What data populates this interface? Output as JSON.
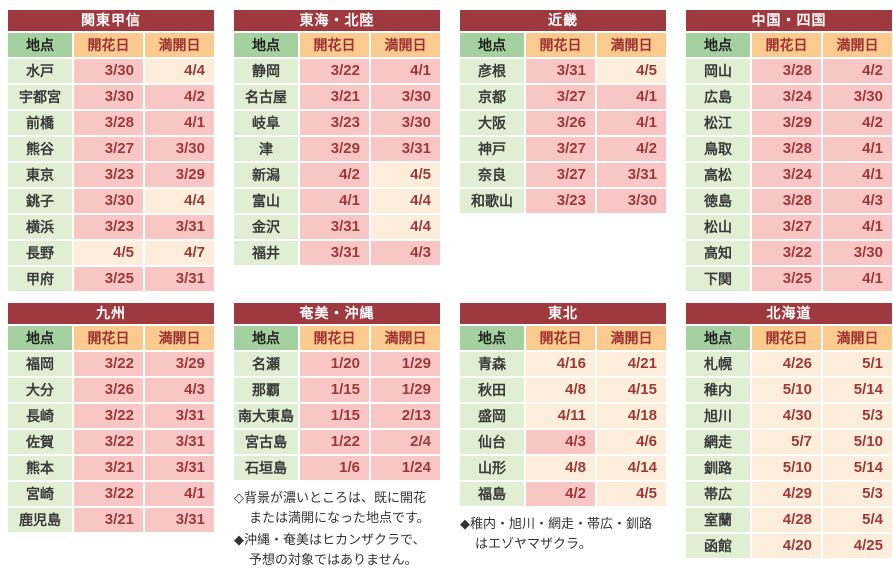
{
  "palette": {
    "title_bg": "#9e3a3f",
    "title_text": "#ffffff",
    "header_green": "#a5d1a0",
    "header_orange": "#fbca8e",
    "cell_green": "#e0efd3",
    "cell_pink": "#f9c6c6",
    "cell_cream": "#fdeedc",
    "date_text": "#9e3838",
    "header_date_text": "#9e3333",
    "location_text": "#3a3a3a",
    "note_text": "#333333"
  },
  "legend": {
    "done_means": "背景が濃いところは、既に開花または満開になった地点",
    "done_color": "#f9c6c6",
    "forecast_color": "#fdeedc"
  },
  "chart_data": [
    {
      "type": "table",
      "title": "関東甲信",
      "columns": [
        "地点",
        "開花日",
        "満開日"
      ],
      "rows": [
        {
          "location": "水戸",
          "kaika": "3/30",
          "kaika_done": true,
          "mankai": "4/4",
          "mankai_done": false
        },
        {
          "location": "宇都宮",
          "kaika": "3/30",
          "kaika_done": true,
          "mankai": "4/2",
          "mankai_done": true
        },
        {
          "location": "前橋",
          "kaika": "3/28",
          "kaika_done": true,
          "mankai": "4/1",
          "mankai_done": true
        },
        {
          "location": "熊谷",
          "kaika": "3/27",
          "kaika_done": true,
          "mankai": "3/30",
          "mankai_done": true
        },
        {
          "location": "東京",
          "kaika": "3/23",
          "kaika_done": true,
          "mankai": "3/29",
          "mankai_done": true
        },
        {
          "location": "銚子",
          "kaika": "3/30",
          "kaika_done": true,
          "mankai": "4/4",
          "mankai_done": false
        },
        {
          "location": "横浜",
          "kaika": "3/23",
          "kaika_done": true,
          "mankai": "3/31",
          "mankai_done": true
        },
        {
          "location": "長野",
          "kaika": "4/5",
          "kaika_done": false,
          "mankai": "4/7",
          "mankai_done": false
        },
        {
          "location": "甲府",
          "kaika": "3/25",
          "kaika_done": true,
          "mankai": "3/31",
          "mankai_done": true
        }
      ],
      "footnotes": []
    },
    {
      "type": "table",
      "title": "東海・北陸",
      "columns": [
        "地点",
        "開花日",
        "満開日"
      ],
      "rows": [
        {
          "location": "静岡",
          "kaika": "3/22",
          "kaika_done": true,
          "mankai": "4/1",
          "mankai_done": true
        },
        {
          "location": "名古屋",
          "kaika": "3/21",
          "kaika_done": true,
          "mankai": "3/30",
          "mankai_done": true
        },
        {
          "location": "岐阜",
          "kaika": "3/23",
          "kaika_done": true,
          "mankai": "3/30",
          "mankai_done": true
        },
        {
          "location": "津",
          "kaika": "3/29",
          "kaika_done": true,
          "mankai": "3/31",
          "mankai_done": true
        },
        {
          "location": "新潟",
          "kaika": "4/2",
          "kaika_done": true,
          "mankai": "4/5",
          "mankai_done": false
        },
        {
          "location": "富山",
          "kaika": "4/1",
          "kaika_done": true,
          "mankai": "4/4",
          "mankai_done": false
        },
        {
          "location": "金沢",
          "kaika": "3/31",
          "kaika_done": true,
          "mankai": "4/4",
          "mankai_done": false
        },
        {
          "location": "福井",
          "kaika": "3/31",
          "kaika_done": true,
          "mankai": "4/3",
          "mankai_done": true
        }
      ],
      "footnotes": []
    },
    {
      "type": "table",
      "title": "近畿",
      "columns": [
        "地点",
        "開花日",
        "満開日"
      ],
      "rows": [
        {
          "location": "彦根",
          "kaika": "3/31",
          "kaika_done": true,
          "mankai": "4/5",
          "mankai_done": false
        },
        {
          "location": "京都",
          "kaika": "3/27",
          "kaika_done": true,
          "mankai": "4/1",
          "mankai_done": true
        },
        {
          "location": "大阪",
          "kaika": "3/26",
          "kaika_done": true,
          "mankai": "4/1",
          "mankai_done": true
        },
        {
          "location": "神戸",
          "kaika": "3/27",
          "kaika_done": true,
          "mankai": "4/2",
          "mankai_done": true
        },
        {
          "location": "奈良",
          "kaika": "3/27",
          "kaika_done": true,
          "mankai": "3/31",
          "mankai_done": true
        },
        {
          "location": "和歌山",
          "kaika": "3/23",
          "kaika_done": true,
          "mankai": "3/30",
          "mankai_done": true
        }
      ],
      "footnotes": []
    },
    {
      "type": "table",
      "title": "中国・四国",
      "columns": [
        "地点",
        "開花日",
        "満開日"
      ],
      "rows": [
        {
          "location": "岡山",
          "kaika": "3/28",
          "kaika_done": true,
          "mankai": "4/2",
          "mankai_done": true
        },
        {
          "location": "広島",
          "kaika": "3/24",
          "kaika_done": true,
          "mankai": "3/30",
          "mankai_done": true
        },
        {
          "location": "松江",
          "kaika": "3/29",
          "kaika_done": true,
          "mankai": "4/2",
          "mankai_done": true
        },
        {
          "location": "鳥取",
          "kaika": "3/28",
          "kaika_done": true,
          "mankai": "4/1",
          "mankai_done": true
        },
        {
          "location": "高松",
          "kaika": "3/24",
          "kaika_done": true,
          "mankai": "4/1",
          "mankai_done": true
        },
        {
          "location": "徳島",
          "kaika": "3/28",
          "kaika_done": true,
          "mankai": "4/3",
          "mankai_done": true
        },
        {
          "location": "松山",
          "kaika": "3/27",
          "kaika_done": true,
          "mankai": "4/1",
          "mankai_done": true
        },
        {
          "location": "高知",
          "kaika": "3/22",
          "kaika_done": true,
          "mankai": "3/30",
          "mankai_done": true
        },
        {
          "location": "下関",
          "kaika": "3/25",
          "kaika_done": true,
          "mankai": "4/1",
          "mankai_done": true
        }
      ],
      "footnotes": []
    },
    {
      "type": "table",
      "title": "九州",
      "columns": [
        "地点",
        "開花日",
        "満開日"
      ],
      "rows": [
        {
          "location": "福岡",
          "kaika": "3/22",
          "kaika_done": true,
          "mankai": "3/29",
          "mankai_done": true
        },
        {
          "location": "大分",
          "kaika": "3/26",
          "kaika_done": true,
          "mankai": "4/3",
          "mankai_done": true
        },
        {
          "location": "長崎",
          "kaika": "3/22",
          "kaika_done": true,
          "mankai": "3/31",
          "mankai_done": true
        },
        {
          "location": "佐賀",
          "kaika": "3/22",
          "kaika_done": true,
          "mankai": "3/31",
          "mankai_done": true
        },
        {
          "location": "熊本",
          "kaika": "3/21",
          "kaika_done": true,
          "mankai": "3/31",
          "mankai_done": true
        },
        {
          "location": "宮崎",
          "kaika": "3/22",
          "kaika_done": true,
          "mankai": "4/1",
          "mankai_done": true
        },
        {
          "location": "鹿児島",
          "kaika": "3/21",
          "kaika_done": true,
          "mankai": "3/31",
          "mankai_done": true
        }
      ],
      "footnotes": []
    },
    {
      "type": "table",
      "title": "奄美・沖縄",
      "columns": [
        "地点",
        "開花日",
        "満開日"
      ],
      "rows": [
        {
          "location": "名瀬",
          "kaika": "1/20",
          "kaika_done": true,
          "mankai": "1/29",
          "mankai_done": true
        },
        {
          "location": "那覇",
          "kaika": "1/15",
          "kaika_done": true,
          "mankai": "1/29",
          "mankai_done": true
        },
        {
          "location": "南大東島",
          "kaika": "1/15",
          "kaika_done": true,
          "mankai": "2/13",
          "mankai_done": true
        },
        {
          "location": "宮古島",
          "kaika": "1/22",
          "kaika_done": true,
          "mankai": "2/4",
          "mankai_done": true
        },
        {
          "location": "石垣島",
          "kaika": "1/6",
          "kaika_done": true,
          "mankai": "1/24",
          "mankai_done": true
        }
      ],
      "footnotes": [
        [
          "◇背景が濃いところは、既に開花",
          "または満開になった地点です。"
        ],
        [
          "◆沖縄・奄美はヒカンザクラで、",
          "予想の対象ではありません。"
        ]
      ]
    },
    {
      "type": "table",
      "title": "東北",
      "columns": [
        "地点",
        "開花日",
        "満開日"
      ],
      "rows": [
        {
          "location": "青森",
          "kaika": "4/16",
          "kaika_done": false,
          "mankai": "4/21",
          "mankai_done": false
        },
        {
          "location": "秋田",
          "kaika": "4/8",
          "kaika_done": false,
          "mankai": "4/15",
          "mankai_done": false
        },
        {
          "location": "盛岡",
          "kaika": "4/11",
          "kaika_done": false,
          "mankai": "4/18",
          "mankai_done": false
        },
        {
          "location": "仙台",
          "kaika": "4/3",
          "kaika_done": true,
          "mankai": "4/6",
          "mankai_done": false
        },
        {
          "location": "山形",
          "kaika": "4/8",
          "kaika_done": false,
          "mankai": "4/14",
          "mankai_done": false
        },
        {
          "location": "福島",
          "kaika": "4/2",
          "kaika_done": true,
          "mankai": "4/5",
          "mankai_done": false
        }
      ],
      "footnotes": [
        [
          "◆稚内・旭川・網走・帯広・釧路",
          "はエゾヤマザクラ。"
        ]
      ]
    },
    {
      "type": "table",
      "title": "北海道",
      "columns": [
        "地点",
        "開花日",
        "満開日"
      ],
      "rows": [
        {
          "location": "札幌",
          "kaika": "4/26",
          "kaika_done": false,
          "mankai": "5/1",
          "mankai_done": false
        },
        {
          "location": "稚内",
          "kaika": "5/10",
          "kaika_done": false,
          "mankai": "5/14",
          "mankai_done": false
        },
        {
          "location": "旭川",
          "kaika": "4/30",
          "kaika_done": false,
          "mankai": "5/3",
          "mankai_done": false
        },
        {
          "location": "網走",
          "kaika": "5/7",
          "kaika_done": false,
          "mankai": "5/10",
          "mankai_done": false
        },
        {
          "location": "釧路",
          "kaika": "5/10",
          "kaika_done": false,
          "mankai": "5/14",
          "mankai_done": false
        },
        {
          "location": "帯広",
          "kaika": "4/29",
          "kaika_done": false,
          "mankai": "5/3",
          "mankai_done": false
        },
        {
          "location": "室蘭",
          "kaika": "4/28",
          "kaika_done": false,
          "mankai": "5/4",
          "mankai_done": false
        },
        {
          "location": "函館",
          "kaika": "4/20",
          "kaika_done": false,
          "mankai": "4/25",
          "mankai_done": false
        }
      ],
      "footnotes": []
    }
  ]
}
